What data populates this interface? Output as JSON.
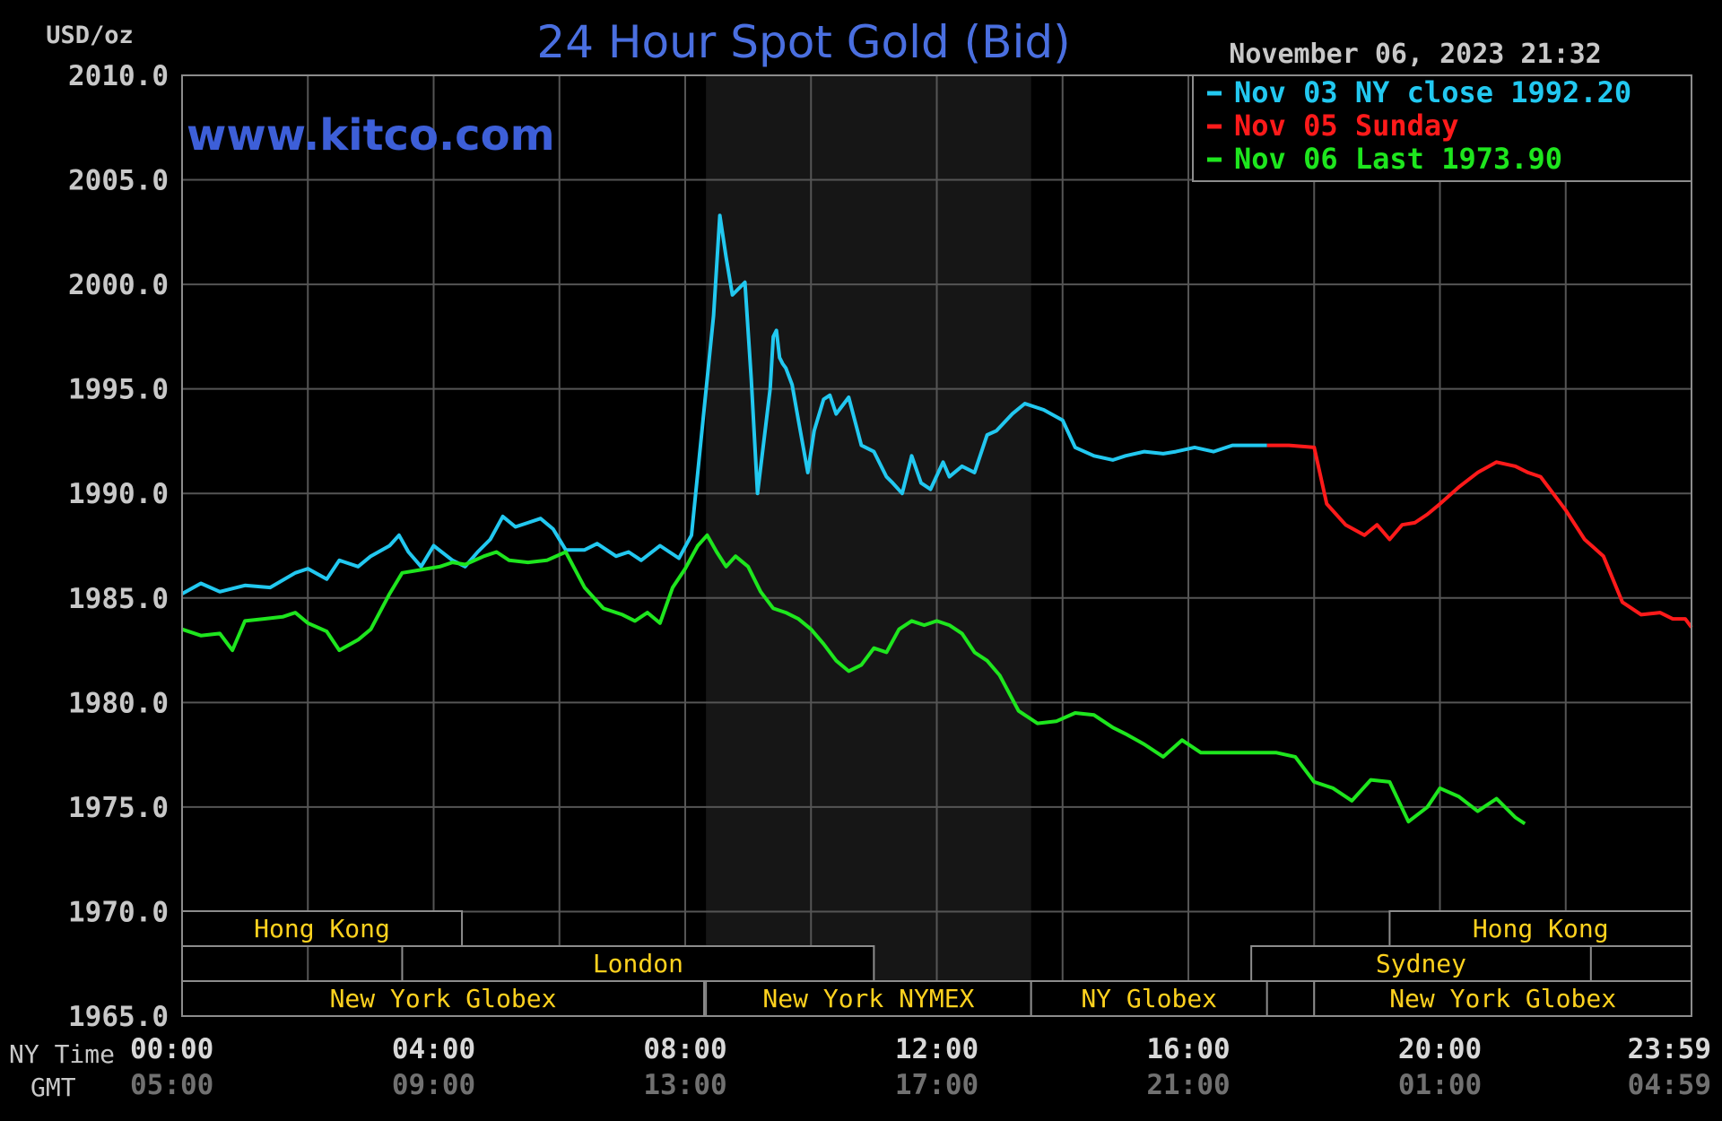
{
  "chart_data": {
    "type": "line",
    "title": "24 Hour Spot Gold (Bid)",
    "unit": "USD/oz",
    "watermark": "www.kitco.com",
    "timestamp": "November 06, 2023 21:32",
    "ylim": [
      1965.0,
      2010.0
    ],
    "y_ticks": [
      "2010.0",
      "2005.0",
      "2000.0",
      "1995.0",
      "1990.0",
      "1985.0",
      "1980.0",
      "1975.0",
      "1970.0",
      "1965.0"
    ],
    "x_tick_labels": {
      "row_ny_label": "NY Time",
      "row_gmt_label": "GMT",
      "ny": [
        "00:00",
        "04:00",
        "08:00",
        "12:00",
        "16:00",
        "20:00",
        "23:59"
      ],
      "gmt": [
        "05:00",
        "09:00",
        "13:00",
        "17:00",
        "21:00",
        "01:00",
        "04:59"
      ]
    },
    "grid": true,
    "shaded_session": "New York NYMEX",
    "sessions": [
      {
        "name": "Hong Kong",
        "row": 1,
        "start_hour": 0.0,
        "end_hour": 4.45
      },
      {
        "name": "Hong Kong",
        "row": 1,
        "start_hour": 19.2,
        "end_hour": 24.0
      },
      {
        "name": "London",
        "row": 2,
        "start_hour": 3.5,
        "end_hour": 11.0
      },
      {
        "name": "Sydney",
        "row": 2,
        "start_hour": 17.0,
        "end_hour": 22.4
      },
      {
        "name": "New York Globex",
        "row": 3,
        "start_hour": 0.0,
        "end_hour": 8.3
      },
      {
        "name": "New York NYMEX",
        "row": 3,
        "start_hour": 8.33,
        "end_hour": 13.5
      },
      {
        "name": "NY Globex",
        "row": 3,
        "start_hour": 13.5,
        "end_hour": 17.25
      },
      {
        "name": "New York Globex",
        "row": 3,
        "start_hour": 18.0,
        "end_hour": 24.0
      }
    ],
    "legend": {
      "placement": "top-right",
      "entries": [
        {
          "label": "Nov 03 NY close 1992.20",
          "color": "#22c8f0"
        },
        {
          "label": "Nov 05 Sunday",
          "color": "#ff1a1a"
        },
        {
          "label": "Nov 06 Last 1973.90",
          "color": "#1ee61e"
        }
      ]
    },
    "series": [
      {
        "color": "#22c8f0",
        "x_unit": "NY hours",
        "x": [
          0.0,
          0.3,
          0.6,
          1.0,
          1.4,
          1.8,
          2.0,
          2.3,
          2.5,
          2.8,
          3.0,
          3.3,
          3.45,
          3.6,
          3.8,
          4.0,
          4.3,
          4.5,
          4.7,
          4.9,
          5.1,
          5.3,
          5.5,
          5.7,
          5.9,
          6.1,
          6.4,
          6.6,
          6.9,
          7.1,
          7.3,
          7.6,
          7.9,
          8.1,
          8.3,
          8.45,
          8.55,
          8.65,
          8.75,
          8.85,
          8.95,
          9.05,
          9.15,
          9.25,
          9.35,
          9.4,
          9.45,
          9.5,
          9.55,
          9.6,
          9.7,
          9.8,
          9.95,
          10.05,
          10.2,
          10.3,
          10.4,
          10.6,
          10.8,
          11.0,
          11.2,
          11.3,
          11.45,
          11.6,
          11.75,
          11.9,
          12.1,
          12.2,
          12.4,
          12.6,
          12.8,
          12.95,
          13.2,
          13.4,
          13.7,
          14.0,
          14.2,
          14.5,
          14.8,
          15.0,
          15.3,
          15.6,
          15.8,
          16.1,
          16.4,
          16.7,
          17.0,
          17.25
        ],
        "y": [
          1985.2,
          1985.7,
          1985.3,
          1985.6,
          1985.5,
          1986.2,
          1986.4,
          1985.9,
          1986.8,
          1986.5,
          1987.0,
          1987.5,
          1988.0,
          1987.2,
          1986.5,
          1987.5,
          1986.8,
          1986.5,
          1987.2,
          1987.8,
          1988.9,
          1988.4,
          1988.6,
          1988.8,
          1988.3,
          1987.3,
          1987.3,
          1987.6,
          1987.0,
          1987.2,
          1986.8,
          1987.5,
          1986.9,
          1988.0,
          1994.0,
          1998.5,
          2003.3,
          2001.3,
          1999.5,
          1999.8,
          2000.1,
          1995.5,
          1990.0,
          1992.5,
          1995.0,
          1997.5,
          1997.8,
          1996.5,
          1996.2,
          1996.0,
          1995.2,
          1993.5,
          1991.0,
          1993.0,
          1994.5,
          1994.7,
          1993.8,
          1994.6,
          1992.3,
          1992.0,
          1990.8,
          1990.5,
          1990.0,
          1991.8,
          1990.5,
          1990.2,
          1991.5,
          1990.8,
          1991.3,
          1991.0,
          1992.8,
          1993.0,
          1993.8,
          1994.3,
          1994.0,
          1993.5,
          1992.2,
          1991.8,
          1991.6,
          1991.8,
          1992.0,
          1991.9,
          1992.0,
          1992.2,
          1992.0,
          1992.3,
          1992.3,
          1992.3
        ]
      },
      {
        "color": "#ff1a1a",
        "x_unit": "NY hours",
        "x": [
          17.25,
          17.6,
          18.0,
          18.2,
          18.5,
          18.8,
          19.0,
          19.2,
          19.4,
          19.6,
          19.8,
          20.0,
          20.3,
          20.6,
          20.9,
          21.2,
          21.4,
          21.6,
          21.8,
          22.0,
          22.3,
          22.6,
          22.9,
          23.2,
          23.5,
          23.7,
          23.9,
          24.0
        ],
        "y": [
          1992.3,
          1992.3,
          1992.2,
          1989.5,
          1988.5,
          1988.0,
          1988.5,
          1987.8,
          1988.5,
          1988.6,
          1989.0,
          1989.5,
          1990.3,
          1991.0,
          1991.5,
          1991.3,
          1991.0,
          1990.8,
          1990.0,
          1989.2,
          1987.8,
          1987.0,
          1984.8,
          1984.2,
          1984.3,
          1984.0,
          1984.0,
          1983.6
        ]
      },
      {
        "color": "#1ee61e",
        "x_unit": "NY hours",
        "x": [
          0.0,
          0.3,
          0.6,
          0.8,
          1.0,
          1.3,
          1.6,
          1.8,
          2.0,
          2.3,
          2.5,
          2.8,
          3.0,
          3.3,
          3.5,
          3.7,
          3.9,
          4.1,
          4.3,
          4.5,
          4.8,
          5.0,
          5.2,
          5.5,
          5.8,
          6.1,
          6.4,
          6.7,
          7.0,
          7.2,
          7.4,
          7.6,
          7.8,
          8.0,
          8.2,
          8.35,
          8.5,
          8.65,
          8.8,
          9.0,
          9.2,
          9.4,
          9.6,
          9.8,
          10.0,
          10.2,
          10.4,
          10.6,
          10.8,
          11.0,
          11.2,
          11.4,
          11.6,
          11.8,
          12.0,
          12.2,
          12.4,
          12.6,
          12.8,
          13.0,
          13.3,
          13.6,
          13.9,
          14.2,
          14.5,
          14.8,
          15.0,
          15.3,
          15.6,
          15.9,
          16.2,
          16.5,
          16.8,
          17.1,
          17.4,
          17.7,
          18.0,
          18.3,
          18.6,
          18.9,
          19.2,
          19.5,
          19.8,
          20.0,
          20.3,
          20.6,
          20.9,
          21.2,
          21.35
        ],
        "y": [
          1983.5,
          1983.2,
          1983.3,
          1982.5,
          1983.9,
          1984.0,
          1984.1,
          1984.3,
          1983.8,
          1983.4,
          1982.5,
          1983.0,
          1983.5,
          1985.2,
          1986.2,
          1986.3,
          1986.4,
          1986.5,
          1986.7,
          1986.6,
          1987.0,
          1987.2,
          1986.8,
          1986.7,
          1986.8,
          1987.2,
          1985.5,
          1984.5,
          1984.2,
          1983.9,
          1984.3,
          1983.8,
          1985.5,
          1986.4,
          1987.5,
          1988.0,
          1987.2,
          1986.5,
          1987.0,
          1986.5,
          1985.3,
          1984.5,
          1984.3,
          1984.0,
          1983.5,
          1982.8,
          1982.0,
          1981.5,
          1981.8,
          1982.6,
          1982.4,
          1983.5,
          1983.9,
          1983.7,
          1983.9,
          1983.7,
          1983.3,
          1982.4,
          1982.0,
          1981.3,
          1979.6,
          1979.0,
          1979.1,
          1979.5,
          1979.4,
          1978.8,
          1978.5,
          1978.0,
          1977.4,
          1978.2,
          1977.6,
          1977.6,
          1977.6,
          1977.6,
          1977.6,
          1977.4,
          1976.2,
          1975.9,
          1975.3,
          1976.3,
          1976.2,
          1974.3,
          1975.0,
          1975.9,
          1975.5,
          1974.8,
          1975.4,
          1974.5,
          1974.2
        ]
      }
    ]
  }
}
